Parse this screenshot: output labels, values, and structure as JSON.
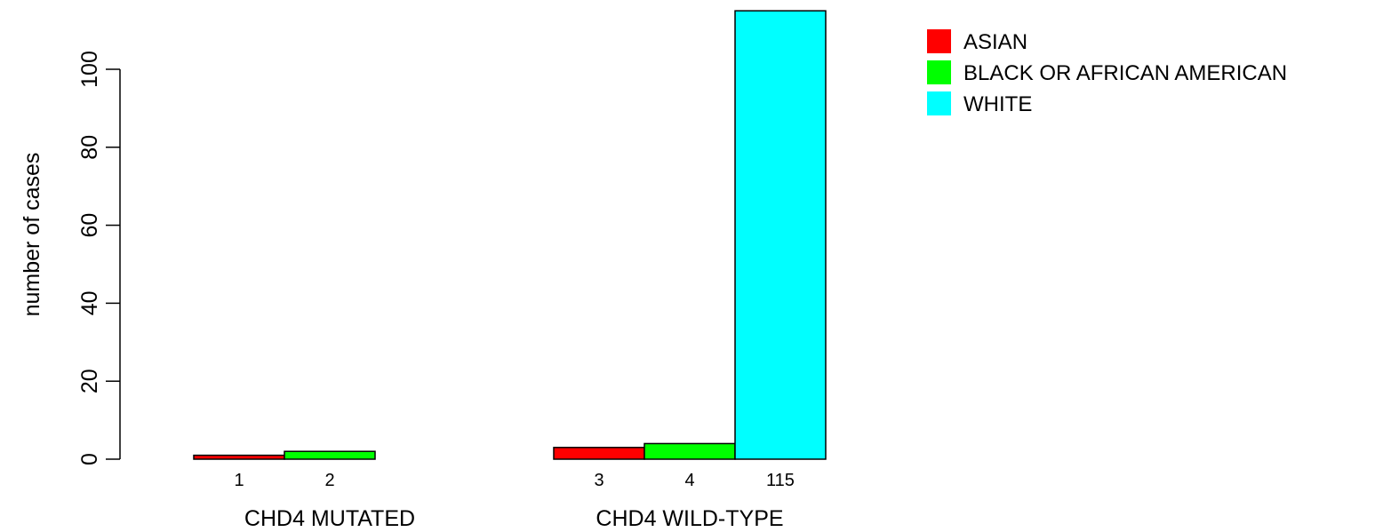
{
  "chart_data": {
    "type": "bar",
    "title": "",
    "xlabel": "",
    "ylabel": "number of cases",
    "ylim": [
      0,
      120
    ],
    "yticks": [
      0,
      20,
      40,
      60,
      80,
      100
    ],
    "groups": [
      "CHD4 MUTATED",
      "CHD4 WILD-TYPE"
    ],
    "series": [
      {
        "name": "ASIAN",
        "color": "#ff0000",
        "values": [
          1,
          3
        ]
      },
      {
        "name": "BLACK OR AFRICAN AMERICAN",
        "color": "#00ff00",
        "values": [
          2,
          4
        ]
      },
      {
        "name": "WHITE",
        "color": "#00ffff",
        "values": [
          0,
          115
        ]
      }
    ],
    "bar_labels": [
      [
        "1",
        "2",
        ""
      ],
      [
        "3",
        "4",
        "115"
      ]
    ],
    "legend_position": "top-right",
    "grid": false
  }
}
